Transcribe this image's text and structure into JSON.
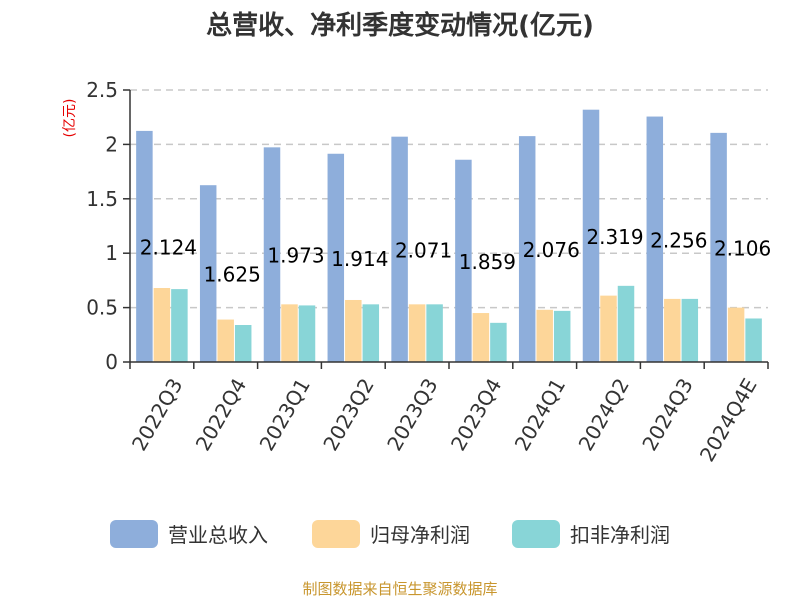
{
  "chart_data": {
    "type": "bar",
    "title": "总营收、净利季度变动情况(亿元)",
    "ylabel": "(亿元)",
    "ylim": [
      0,
      2.5
    ],
    "yticks": [
      0,
      0.5,
      1,
      1.5,
      2,
      2.5
    ],
    "grid": true,
    "legend_position": "bottom",
    "categories": [
      "2022Q3",
      "2022Q4",
      "2023Q1",
      "2023Q2",
      "2023Q3",
      "2023Q4",
      "2024Q1",
      "2024Q2",
      "2024Q3",
      "2024Q4E"
    ],
    "series": [
      {
        "name": "营业总收入",
        "color": "#8eaedb",
        "values": [
          2.124,
          1.625,
          1.973,
          1.914,
          2.071,
          1.859,
          2.076,
          2.319,
          2.256,
          2.106
        ]
      },
      {
        "name": "归母净利润",
        "color": "#fdd699",
        "values": [
          0.68,
          0.39,
          0.53,
          0.57,
          0.53,
          0.45,
          0.48,
          0.61,
          0.58,
          0.5
        ]
      },
      {
        "name": "扣非净利润",
        "color": "#88d5d7",
        "values": [
          0.67,
          0.34,
          0.52,
          0.53,
          0.53,
          0.36,
          0.47,
          0.7,
          0.58,
          0.4
        ]
      }
    ],
    "data_labels": [
      "2.124",
      "1.625",
      "1.973",
      "1.914",
      "2.071",
      "1.859",
      "2.076",
      "2.319",
      "2.256",
      "2.106"
    ]
  },
  "source": "制图数据来自恒生聚源数据库"
}
